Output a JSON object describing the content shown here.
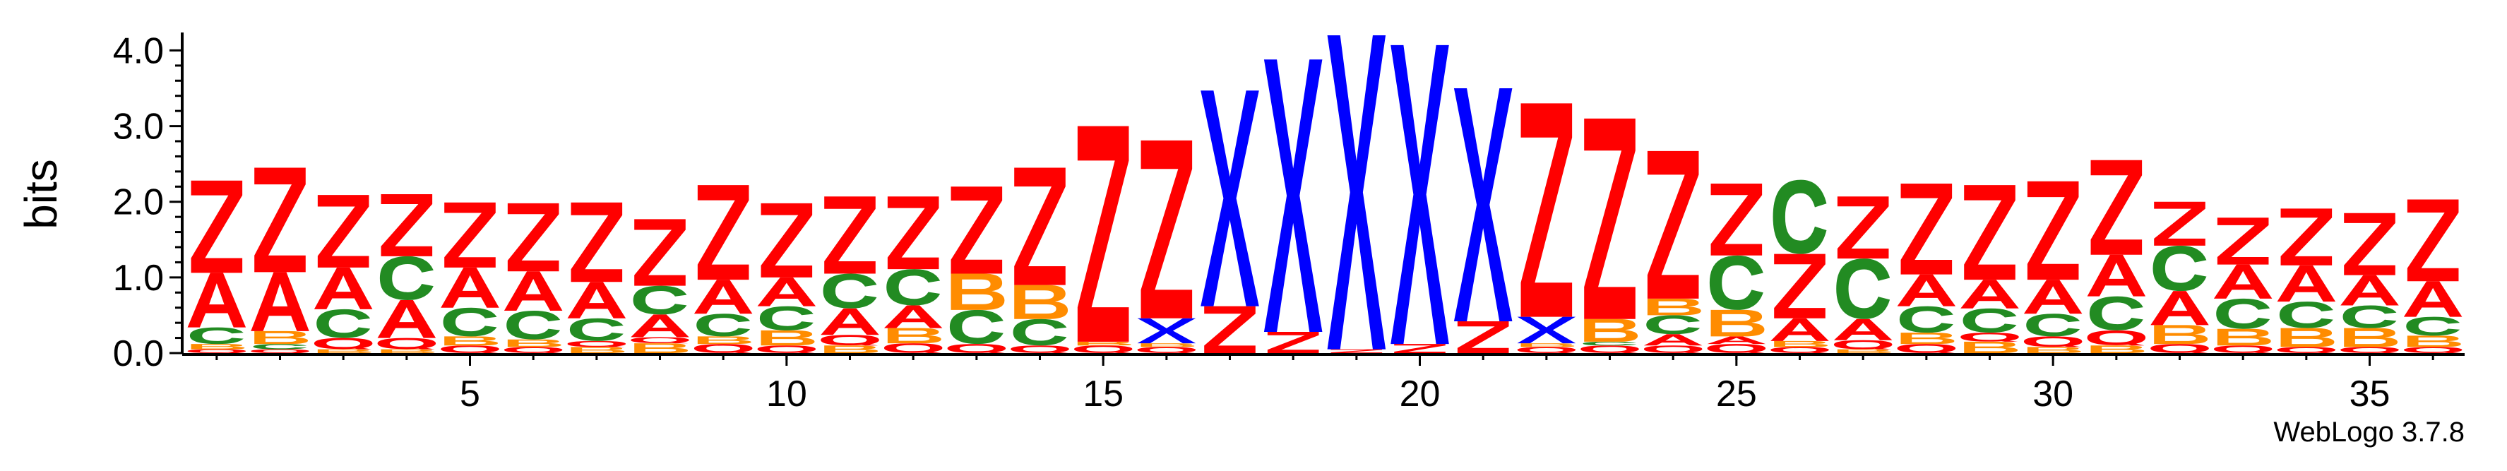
{
  "chart_data": {
    "type": "sequence-logo",
    "ylabel": "bits",
    "ylim": [
      0,
      4.2
    ],
    "y_ticks": [
      "0.0",
      "1.0",
      "2.0",
      "3.0",
      "4.0"
    ],
    "x_ticks": [
      5,
      10,
      15,
      20,
      25,
      30,
      35
    ],
    "credit": "WebLogo 3.7.8",
    "colors": {
      "Z": "#FF0000",
      "A": "#FF0000",
      "C": "#228B22",
      "B": "#FF8C00",
      "Q": "#FF0000",
      "X": "#0000FF"
    },
    "positions": [
      {
        "pos": 1,
        "letters": [
          [
            "Q",
            0.05
          ],
          [
            "B",
            0.07
          ],
          [
            "C",
            0.22
          ],
          [
            "A",
            0.72
          ],
          [
            "Z",
            1.22
          ]
        ]
      },
      {
        "pos": 2,
        "letters": [
          [
            "Q",
            0.05
          ],
          [
            "C",
            0.07
          ],
          [
            "B",
            0.17
          ],
          [
            "A",
            0.78
          ],
          [
            "Z",
            1.38
          ]
        ]
      },
      {
        "pos": 3,
        "letters": [
          [
            "B",
            0.05
          ],
          [
            "Q",
            0.15
          ],
          [
            "C",
            0.38
          ],
          [
            "A",
            0.55
          ],
          [
            "Z",
            0.96
          ]
        ]
      },
      {
        "pos": 4,
        "letters": [
          [
            "B",
            0.05
          ],
          [
            "Q",
            0.15
          ],
          [
            "A",
            0.5
          ],
          [
            "C",
            0.58
          ],
          [
            "Z",
            0.82
          ]
        ]
      },
      {
        "pos": 5,
        "letters": [
          [
            "Q",
            0.1
          ],
          [
            "B",
            0.12
          ],
          [
            "C",
            0.38
          ],
          [
            "A",
            0.53
          ],
          [
            "Z",
            0.86
          ]
        ]
      },
      {
        "pos": 6,
        "letters": [
          [
            "Q",
            0.08
          ],
          [
            "B",
            0.1
          ],
          [
            "C",
            0.38
          ],
          [
            "A",
            0.52
          ],
          [
            "Z",
            0.9
          ]
        ]
      },
      {
        "pos": 7,
        "letters": [
          [
            "B",
            0.08
          ],
          [
            "Q",
            0.08
          ],
          [
            "C",
            0.3
          ],
          [
            "A",
            0.48
          ],
          [
            "Z",
            1.05
          ]
        ]
      },
      {
        "pos": 8,
        "letters": [
          [
            "B",
            0.13
          ],
          [
            "Q",
            0.08
          ],
          [
            "A",
            0.3
          ],
          [
            "C",
            0.38
          ],
          [
            "Z",
            0.88
          ]
        ]
      },
      {
        "pos": 9,
        "letters": [
          [
            "Q",
            0.12
          ],
          [
            "B",
            0.1
          ],
          [
            "C",
            0.3
          ],
          [
            "A",
            0.45
          ],
          [
            "Z",
            1.25
          ]
        ]
      },
      {
        "pos": 10,
        "letters": [
          [
            "Q",
            0.1
          ],
          [
            "B",
            0.2
          ],
          [
            "C",
            0.32
          ],
          [
            "A",
            0.38
          ],
          [
            "Z",
            0.98
          ]
        ]
      },
      {
        "pos": 11,
        "letters": [
          [
            "B",
            0.1
          ],
          [
            "Q",
            0.14
          ],
          [
            "A",
            0.35
          ],
          [
            "C",
            0.46
          ],
          [
            "Z",
            1.02
          ]
        ]
      },
      {
        "pos": 12,
        "letters": [
          [
            "Q",
            0.13
          ],
          [
            "B",
            0.2
          ],
          [
            "A",
            0.3
          ],
          [
            "C",
            0.48
          ],
          [
            "Z",
            0.96
          ]
        ]
      },
      {
        "pos": 13,
        "letters": [
          [
            "Q",
            0.12
          ],
          [
            "C",
            0.45
          ],
          [
            "B",
            0.48
          ],
          [
            "Z",
            1.15
          ]
        ]
      },
      {
        "pos": 14,
        "letters": [
          [
            "Q",
            0.1
          ],
          [
            "C",
            0.35
          ],
          [
            "B",
            0.45
          ],
          [
            "Z",
            1.55
          ]
        ]
      },
      {
        "pos": 15,
        "letters": [
          [
            "Q",
            0.1
          ],
          [
            "B",
            0.05
          ],
          [
            "Z",
            2.85
          ]
        ]
      },
      {
        "pos": 16,
        "letters": [
          [
            "Q",
            0.08
          ],
          [
            "B",
            0.05
          ],
          [
            "X",
            0.33
          ],
          [
            "Z",
            2.35
          ]
        ]
      },
      {
        "pos": 17,
        "letters": [
          [
            "Z",
            0.62
          ],
          [
            "X",
            2.85
          ]
        ]
      },
      {
        "pos": 18,
        "letters": [
          [
            "Z",
            0.28
          ],
          [
            "X",
            3.6
          ]
        ]
      },
      {
        "pos": 19,
        "letters": [
          [
            "Z",
            0.05
          ],
          [
            "X",
            4.15
          ]
        ]
      },
      {
        "pos": 20,
        "letters": [
          [
            "Z",
            0.12
          ],
          [
            "X",
            3.95
          ]
        ]
      },
      {
        "pos": 21,
        "letters": [
          [
            "Z",
            0.42
          ],
          [
            "X",
            3.08
          ]
        ]
      },
      {
        "pos": 22,
        "letters": [
          [
            "Q",
            0.08
          ],
          [
            "B",
            0.05
          ],
          [
            "X",
            0.35
          ],
          [
            "Z",
            2.82
          ]
        ]
      },
      {
        "pos": 23,
        "letters": [
          [
            "Q",
            0.1
          ],
          [
            "C",
            0.05
          ],
          [
            "B",
            0.3
          ],
          [
            "Z",
            2.65
          ]
        ]
      },
      {
        "pos": 24,
        "letters": [
          [
            "Q",
            0.1
          ],
          [
            "A",
            0.15
          ],
          [
            "C",
            0.25
          ],
          [
            "B",
            0.22
          ],
          [
            "Z",
            1.95
          ]
        ]
      },
      {
        "pos": 25,
        "letters": [
          [
            "Q",
            0.12
          ],
          [
            "A",
            0.1
          ],
          [
            "B",
            0.35
          ],
          [
            "C",
            0.72
          ],
          [
            "Z",
            0.95
          ]
        ]
      },
      {
        "pos": 26,
        "letters": [
          [
            "Q",
            0.08
          ],
          [
            "B",
            0.08
          ],
          [
            "A",
            0.3
          ],
          [
            "Z",
            0.85
          ],
          [
            "C",
            0.98
          ]
        ]
      },
      {
        "pos": 27,
        "letters": [
          [
            "B",
            0.05
          ],
          [
            "Q",
            0.12
          ],
          [
            "A",
            0.28
          ],
          [
            "C",
            0.8
          ],
          [
            "Z",
            0.82
          ]
        ]
      },
      {
        "pos": 28,
        "letters": [
          [
            "Q",
            0.12
          ],
          [
            "B",
            0.15
          ],
          [
            "C",
            0.35
          ],
          [
            "A",
            0.42
          ],
          [
            "Z",
            1.2
          ]
        ]
      },
      {
        "pos": 29,
        "letters": [
          [
            "B",
            0.15
          ],
          [
            "Q",
            0.12
          ],
          [
            "C",
            0.32
          ],
          [
            "A",
            0.38
          ],
          [
            "Z",
            1.25
          ]
        ]
      },
      {
        "pos": 30,
        "letters": [
          [
            "B",
            0.08
          ],
          [
            "Q",
            0.14
          ],
          [
            "C",
            0.3
          ],
          [
            "A",
            0.45
          ],
          [
            "Z",
            1.3
          ]
        ]
      },
      {
        "pos": 31,
        "letters": [
          [
            "B",
            0.1
          ],
          [
            "Q",
            0.2
          ],
          [
            "C",
            0.45
          ],
          [
            "A",
            0.55
          ],
          [
            "Z",
            1.25
          ]
        ]
      },
      {
        "pos": 32,
        "letters": [
          [
            "Q",
            0.12
          ],
          [
            "B",
            0.25
          ],
          [
            "A",
            0.45
          ],
          [
            "C",
            0.6
          ],
          [
            "Z",
            0.58
          ]
        ]
      },
      {
        "pos": 33,
        "letters": [
          [
            "Q",
            0.1
          ],
          [
            "B",
            0.22
          ],
          [
            "C",
            0.4
          ],
          [
            "A",
            0.45
          ],
          [
            "Z",
            0.62
          ]
        ]
      },
      {
        "pos": 34,
        "letters": [
          [
            "Q",
            0.08
          ],
          [
            "B",
            0.25
          ],
          [
            "C",
            0.35
          ],
          [
            "A",
            0.48
          ],
          [
            "Z",
            0.75
          ]
        ]
      },
      {
        "pos": 35,
        "letters": [
          [
            "Q",
            0.08
          ],
          [
            "B",
            0.25
          ],
          [
            "C",
            0.3
          ],
          [
            "A",
            0.4
          ],
          [
            "Z",
            0.82
          ]
        ]
      },
      {
        "pos": 36,
        "letters": [
          [
            "Q",
            0.08
          ],
          [
            "B",
            0.15
          ],
          [
            "C",
            0.25
          ],
          [
            "A",
            0.47
          ],
          [
            "Z",
            1.08
          ]
        ]
      }
    ]
  }
}
